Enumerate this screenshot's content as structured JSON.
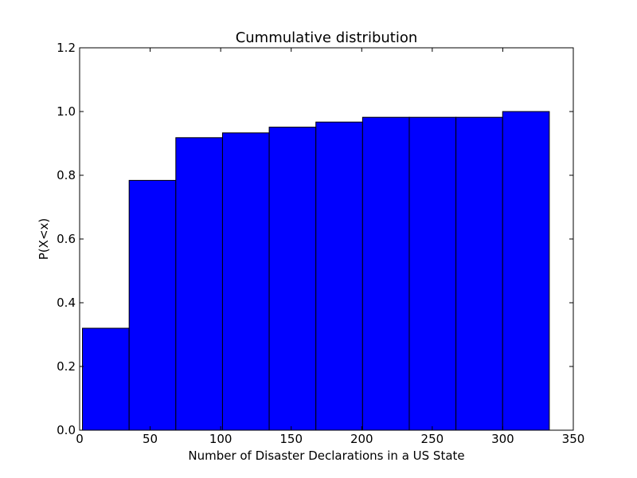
{
  "chart_data": {
    "type": "bar",
    "title": "Cummulative distribution",
    "xlabel": "Number of Disaster Declarations in a US State",
    "ylabel": "P(X<x)",
    "xlim": [
      0,
      350
    ],
    "ylim": [
      0,
      1.2
    ],
    "xticks": [
      "0",
      "50",
      "100",
      "150",
      "200",
      "250",
      "300",
      "350"
    ],
    "yticks": [
      "0.0",
      "0.2",
      "0.4",
      "0.6",
      "0.8",
      "1.0",
      "1.2"
    ],
    "bin_edges": [
      2,
      35.1,
      68.2,
      101.3,
      134.4,
      167.5,
      200.6,
      233.7,
      266.8,
      299.9,
      333
    ],
    "values": [
      0.32,
      0.784,
      0.918,
      0.933,
      0.951,
      0.967,
      0.982,
      0.982,
      0.982,
      1.0
    ],
    "bar_color": "#0000ff",
    "edge_color": "#000000",
    "grid": false,
    "legend": "none"
  }
}
